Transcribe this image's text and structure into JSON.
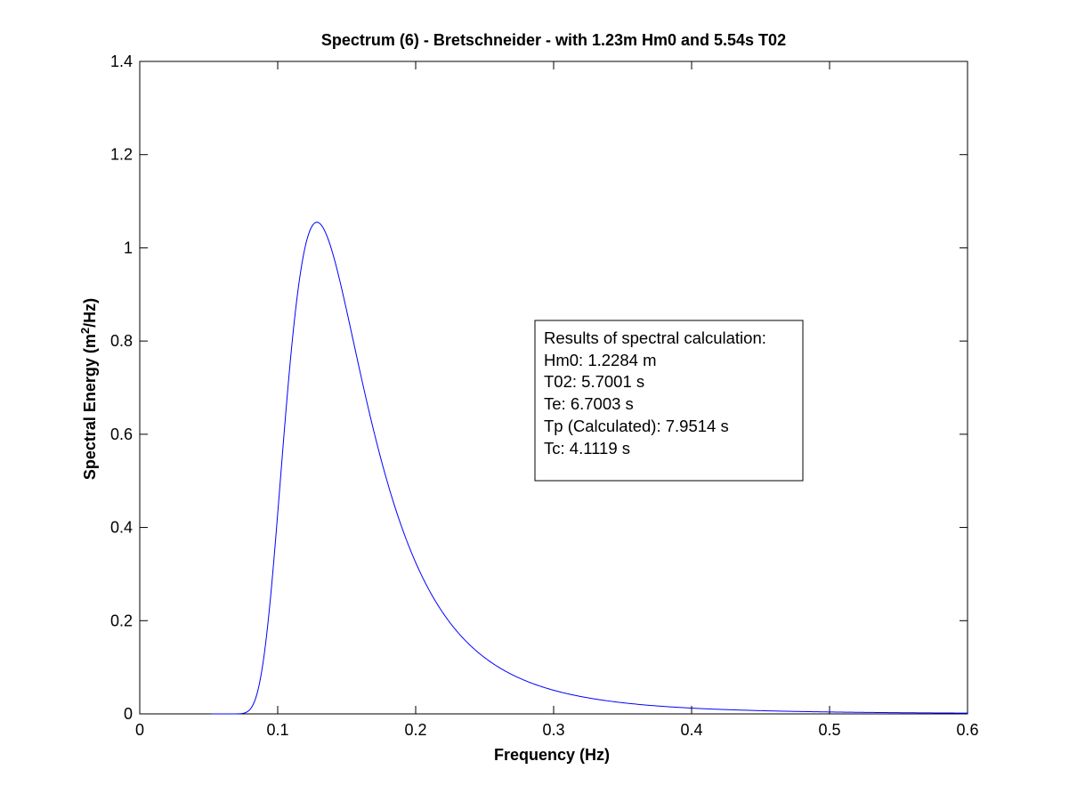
{
  "chart_data": {
    "type": "line",
    "title": "Spectrum (6) - Bretschneider -  with 1.23m Hm0 and 5.54s T02",
    "xlabel": "Frequency (Hz)",
    "ylabel_main": "Spectral Energy (m",
    "ylabel_sup": "2",
    "ylabel_end": "/Hz)",
    "xlim": [
      0,
      0.6
    ],
    "ylim": [
      0,
      1.4
    ],
    "x_ticks": [
      0,
      0.1,
      0.2,
      0.3,
      0.4,
      0.5,
      0.6
    ],
    "x_tick_labels": [
      "0",
      "0.1",
      "0.2",
      "0.3",
      "0.4",
      "0.5",
      "0.6"
    ],
    "y_ticks": [
      0,
      0.2,
      0.4,
      0.6,
      0.8,
      1.0,
      1.2,
      1.4
    ],
    "y_tick_labels": [
      "0",
      "0.2",
      "0.4",
      "0.6",
      "0.8",
      "1",
      "1.2",
      "1.4"
    ],
    "grid": false,
    "series": [
      {
        "color": "#0000ff",
        "spectrum": "Bretschneider",
        "peak_frequency": 0.1284,
        "peak_value": 1.055,
        "x_range": [
          0.052,
          0.6
        ]
      }
    ],
    "annotation": {
      "lines": [
        "Results of spectral calculation:",
        "Hm0: 1.2284 m",
        "T02: 5.7001 s",
        "Te: 6.7003 s",
        "Tp (Calculated): 7.9514 s",
        "Tc: 4.1119 s"
      ]
    }
  }
}
